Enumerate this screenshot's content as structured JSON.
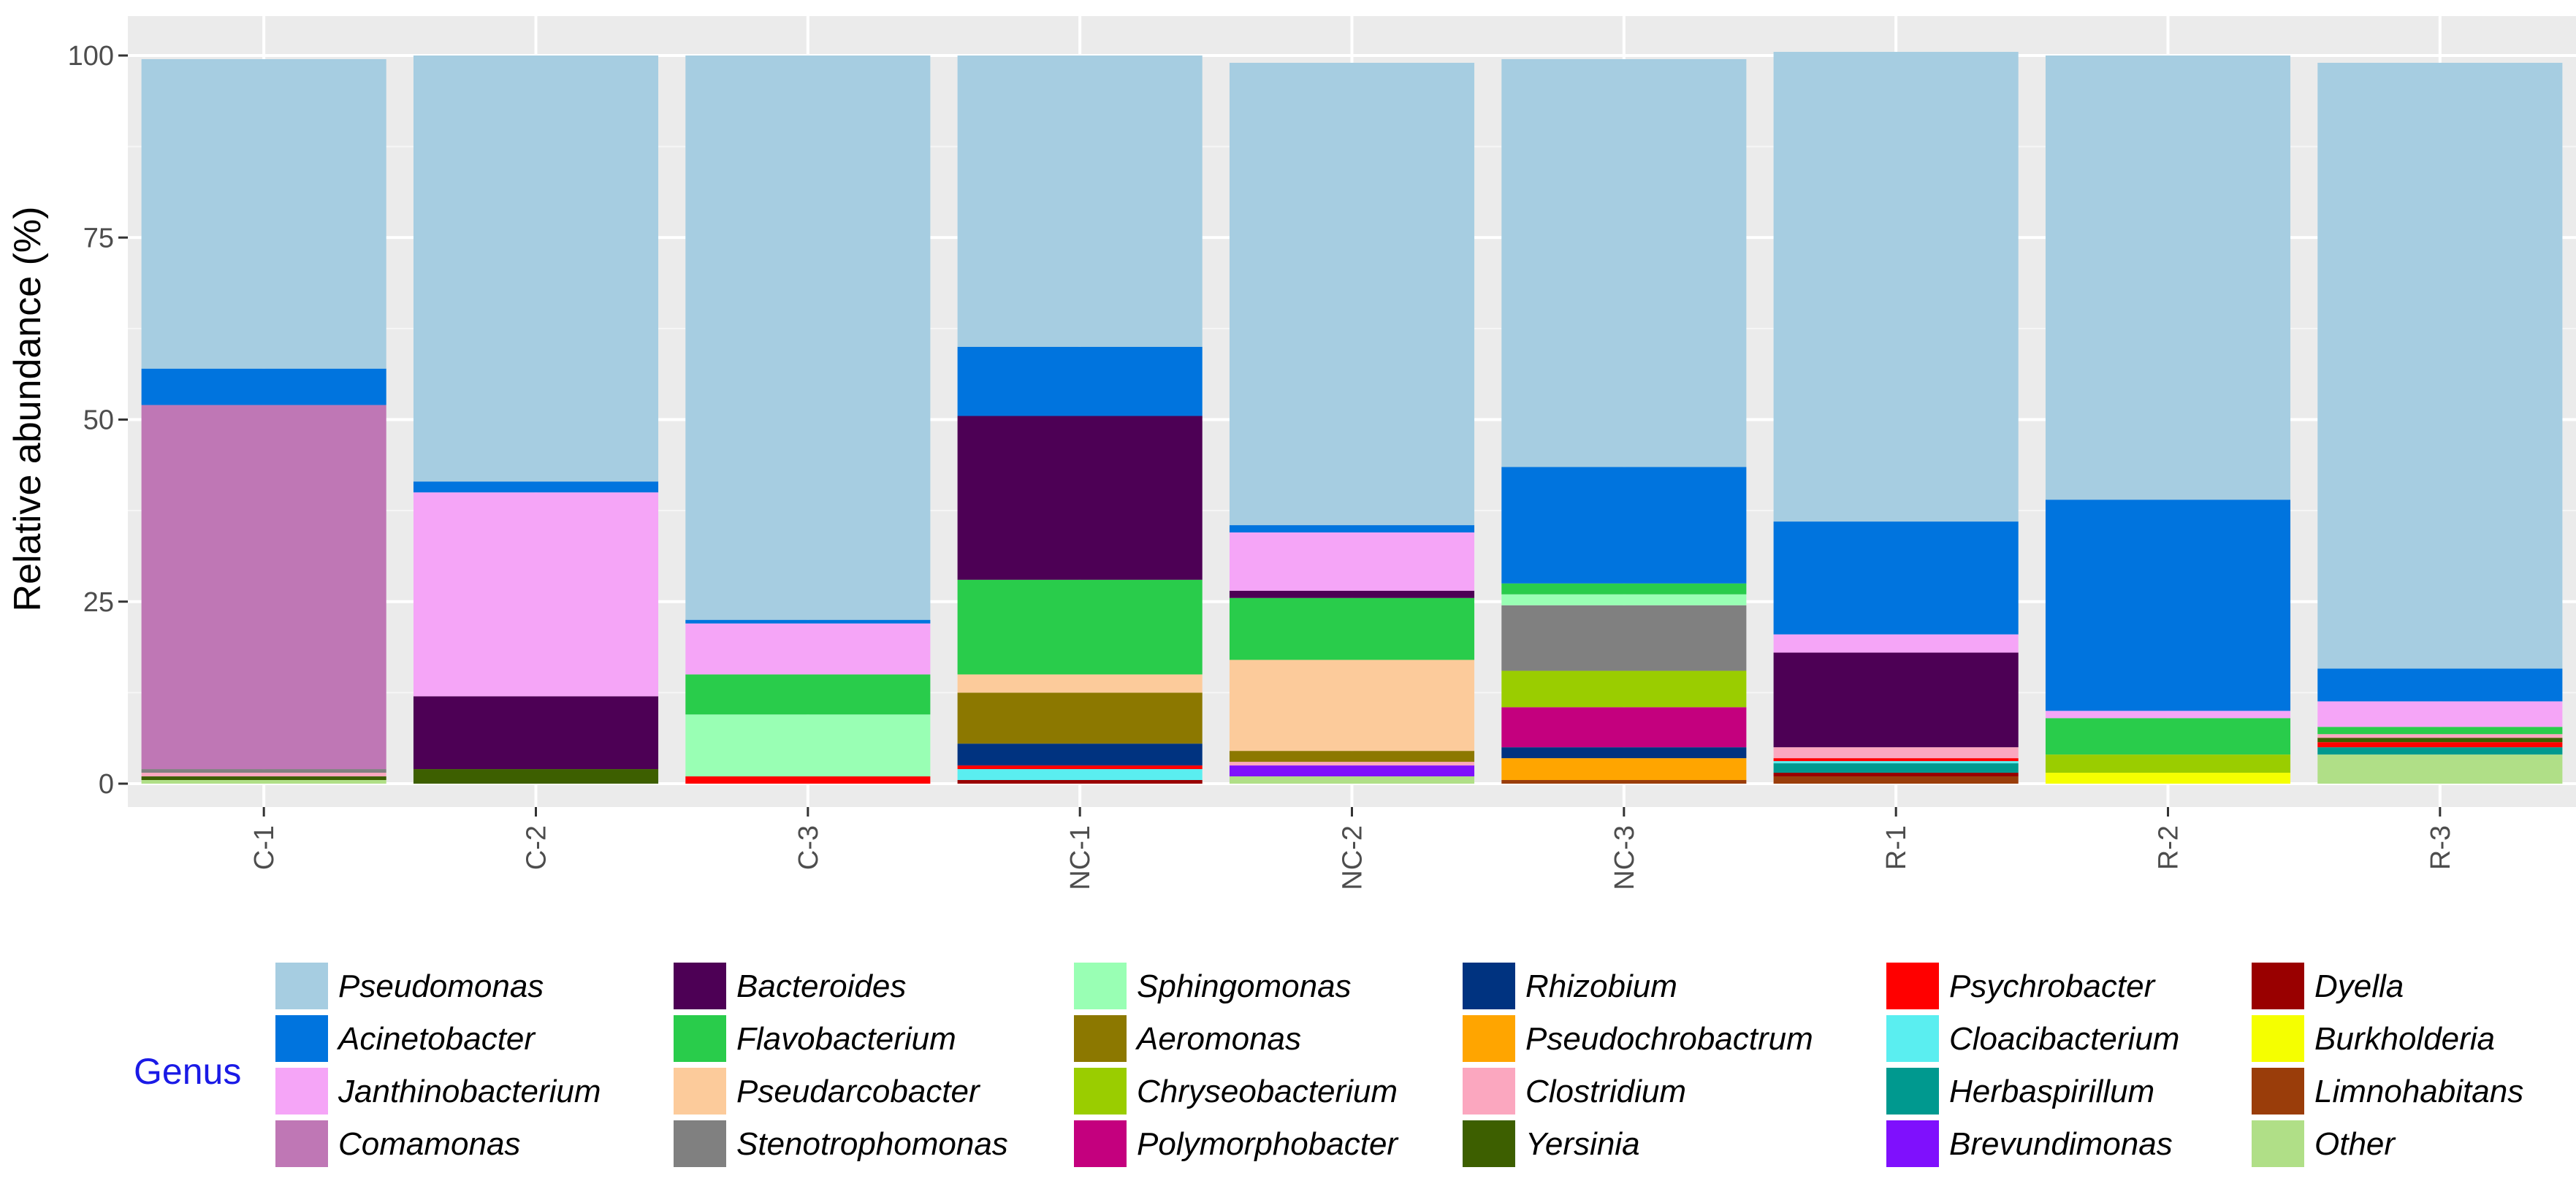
{
  "chart_data": {
    "type": "stacked-bar",
    "title": "",
    "xlabel": "",
    "ylabel": "Relative abundance (%)",
    "ylim": [
      0,
      100
    ],
    "yticks": [
      0,
      25,
      50,
      75,
      100
    ],
    "grid": true,
    "legend_title": "Genus",
    "legend_position": "bottom",
    "categories": [
      "C-1",
      "C-2",
      "C-3",
      "NC-1",
      "NC-2",
      "NC-3",
      "R-1",
      "R-2",
      "R-3"
    ],
    "series": [
      {
        "name": "Other",
        "color": "#b0df87",
        "values": [
          0.5,
          0,
          0,
          0,
          1.0,
          0,
          0,
          0,
          4.0
        ]
      },
      {
        "name": "Limnohabitans",
        "color": "#9a3d0a",
        "values": [
          0,
          0,
          0,
          0,
          0,
          0.5,
          1.0,
          0,
          0
        ]
      },
      {
        "name": "Burkholderia",
        "color": "#f5ff00",
        "values": [
          0,
          0,
          0,
          0,
          0,
          0,
          0,
          1.5,
          0
        ]
      },
      {
        "name": "Dyella",
        "color": "#990000",
        "values": [
          0,
          0,
          0,
          0.5,
          0,
          0,
          0.5,
          0,
          0
        ]
      },
      {
        "name": "Brevundimonas",
        "color": "#7f10fd",
        "values": [
          0,
          0,
          0,
          0,
          1.5,
          0,
          0,
          0,
          0
        ]
      },
      {
        "name": "Herbaspirillum",
        "color": "#00998f",
        "values": [
          0,
          0,
          0,
          0,
          0,
          0,
          1.3,
          0,
          1.0
        ]
      },
      {
        "name": "Cloacibacterium",
        "color": "#5aeef0",
        "values": [
          0,
          0,
          0,
          1.5,
          0,
          0,
          0.3,
          0,
          0
        ]
      },
      {
        "name": "Psychrobacter",
        "color": "#ff0000",
        "values": [
          0,
          0,
          1.0,
          0.5,
          0,
          0,
          0.4,
          0,
          0.7
        ]
      },
      {
        "name": "Yersinia",
        "color": "#3d5f00",
        "values": [
          0.5,
          2.0,
          0,
          0,
          0,
          0,
          0,
          0,
          0.6
        ]
      },
      {
        "name": "Clostridium",
        "color": "#fba7bf",
        "values": [
          0.5,
          0,
          0,
          0,
          0.5,
          0,
          1.5,
          0,
          0.5
        ]
      },
      {
        "name": "Pseudochrobactrum",
        "color": "#ffa500",
        "values": [
          0,
          0,
          0,
          0,
          0,
          3.0,
          0,
          0,
          0
        ]
      },
      {
        "name": "Rhizobium",
        "color": "#003380",
        "values": [
          0,
          0,
          0,
          3.0,
          0,
          1.5,
          0,
          0,
          0
        ]
      },
      {
        "name": "Polymorphobacter",
        "color": "#c4007e",
        "values": [
          0,
          0,
          0,
          0,
          0,
          5.5,
          0,
          0,
          0
        ]
      },
      {
        "name": "Chryseobacterium",
        "color": "#9acd00",
        "values": [
          0,
          0,
          0,
          0,
          0,
          5.0,
          0,
          2.5,
          0
        ]
      },
      {
        "name": "Aeromonas",
        "color": "#8c7800",
        "values": [
          0,
          0,
          0,
          7.0,
          1.5,
          0,
          0,
          0,
          0
        ]
      },
      {
        "name": "Stenotrophomonas",
        "color": "#808080",
        "values": [
          0.5,
          0,
          0,
          0,
          0,
          9.0,
          0,
          0,
          0
        ]
      },
      {
        "name": "Sphingomonas",
        "color": "#99ffb4",
        "values": [
          0,
          0,
          8.5,
          0,
          0,
          1.5,
          0,
          0,
          0
        ]
      },
      {
        "name": "Pseudarcobacter",
        "color": "#fccb9b",
        "values": [
          0,
          0,
          0,
          2.5,
          12.5,
          0,
          0,
          0,
          0
        ]
      },
      {
        "name": "Flavobacterium",
        "color": "#29cc4b",
        "values": [
          0,
          0,
          5.5,
          13.0,
          8.5,
          1.5,
          0,
          5.0,
          1.0
        ]
      },
      {
        "name": "Bacteroides",
        "color": "#4d0055",
        "values": [
          0,
          10.0,
          0,
          22.5,
          1.0,
          0,
          13.0,
          0,
          0
        ]
      },
      {
        "name": "Comamonas",
        "color": "#bf77b5",
        "values": [
          50.0,
          0,
          0,
          0,
          0,
          0,
          0,
          0,
          0
        ]
      },
      {
        "name": "Janthinobacterium",
        "color": "#f5a5f7",
        "values": [
          0,
          28.0,
          7.0,
          0,
          8.0,
          0,
          2.5,
          1.0,
          3.5
        ]
      },
      {
        "name": "Acinetobacter",
        "color": "#0074de",
        "values": [
          5.0,
          1.5,
          0.5,
          9.5,
          1.0,
          16.0,
          15.5,
          29.0,
          4.5
        ]
      },
      {
        "name": "Pseudomonas",
        "color": "#a6cde1",
        "values": [
          42.5,
          58.5,
          77.5,
          40.0,
          63.5,
          56.0,
          64.5,
          61.0,
          83.2
        ]
      }
    ],
    "legend_order": [
      "Pseudomonas",
      "Acinetobacter",
      "Janthinobacterium",
      "Comamonas",
      "Bacteroides",
      "Flavobacterium",
      "Pseudarcobacter",
      "Stenotrophomonas",
      "Sphingomonas",
      "Aeromonas",
      "Chryseobacterium",
      "Polymorphobacter",
      "Rhizobium",
      "Pseudochrobactrum",
      "Clostridium",
      "Yersinia",
      "Psychrobacter",
      "Cloacibacterium",
      "Herbaspirillum",
      "Brevundimonas",
      "Dyella",
      "Burkholderia",
      "Limnohabitans",
      "Other"
    ]
  }
}
